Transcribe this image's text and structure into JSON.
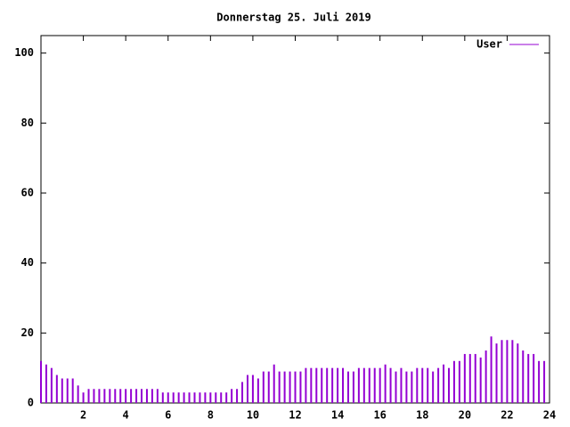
{
  "chart_data": {
    "type": "impulses",
    "title": "Donnerstag 25. Juli 2019",
    "x": [
      0,
      0.25,
      0.5,
      0.75,
      1,
      1.25,
      1.5,
      1.75,
      2,
      2.25,
      2.5,
      2.75,
      3,
      3.25,
      3.5,
      3.75,
      4,
      4.25,
      4.5,
      4.75,
      5,
      5.25,
      5.5,
      5.75,
      6,
      6.25,
      6.5,
      6.75,
      7,
      7.25,
      7.5,
      7.75,
      8,
      8.25,
      8.5,
      8.75,
      9,
      9.25,
      9.5,
      9.75,
      10,
      10.25,
      10.5,
      10.75,
      11,
      11.25,
      11.5,
      11.75,
      12,
      12.25,
      12.5,
      12.75,
      13,
      13.25,
      13.5,
      13.75,
      14,
      14.25,
      14.5,
      14.75,
      15,
      15.25,
      15.5,
      15.75,
      16,
      16.25,
      16.5,
      16.75,
      17,
      17.25,
      17.5,
      17.75,
      18,
      18.25,
      18.5,
      18.75,
      19,
      19.25,
      19.5,
      19.75,
      20,
      20.25,
      20.5,
      20.75,
      21,
      21.25,
      21.5,
      21.75,
      22,
      22.25,
      22.5,
      22.75,
      23,
      23.25,
      23.5,
      23.75
    ],
    "series": [
      {
        "name": "User",
        "color": "#9400d3",
        "values": [
          12,
          11,
          10,
          8,
          7,
          7,
          7,
          5,
          3,
          4,
          4,
          4,
          4,
          4,
          4,
          4,
          4,
          4,
          4,
          4,
          4,
          4,
          4,
          3,
          3,
          3,
          3,
          3,
          3,
          3,
          3,
          3,
          3,
          3,
          3,
          3,
          4,
          4,
          6,
          8,
          8,
          7,
          9,
          9,
          11,
          9,
          9,
          9,
          9,
          9,
          10,
          10,
          10,
          10,
          10,
          10,
          10,
          10,
          9,
          9,
          10,
          10,
          10,
          10,
          10,
          11,
          10,
          9,
          10,
          9,
          9,
          10,
          10,
          10,
          9,
          10,
          11,
          10,
          12,
          12,
          14,
          14,
          14,
          13,
          15,
          19,
          17,
          18,
          18,
          18,
          17,
          15,
          14,
          14,
          12,
          12
        ]
      }
    ],
    "xlim": [
      0,
      24
    ],
    "ylim": [
      0,
      105
    ],
    "xticks": [
      2,
      4,
      6,
      8,
      10,
      12,
      14,
      16,
      18,
      20,
      22,
      24
    ],
    "yticks": [
      0,
      20,
      40,
      60,
      80,
      100
    ]
  }
}
